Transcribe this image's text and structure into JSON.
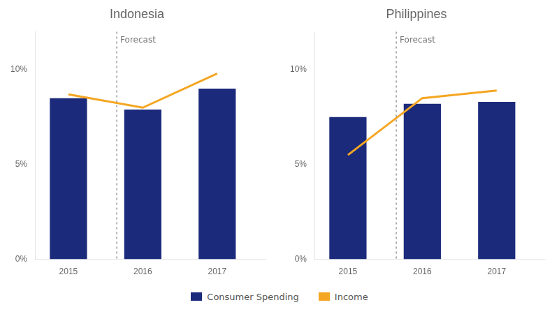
{
  "chart_data": [
    {
      "type": "bar",
      "title": "Indonesia",
      "x": [
        2015,
        2016,
        2017
      ],
      "series": [
        {
          "name": "Consumer Spending",
          "type": "bar",
          "color": "#1b2a7b",
          "values": [
            8.5,
            7.9,
            9.0
          ]
        },
        {
          "name": "Income",
          "type": "line",
          "color": "#f5a623",
          "values": [
            8.7,
            8.0,
            9.8
          ]
        }
      ],
      "annotations": [
        {
          "text": "Forecast",
          "x": 2015.65
        }
      ],
      "xlim": [
        2014.55,
        2017.65
      ],
      "xticks": [
        2015,
        2016,
        2017
      ],
      "ylim": [
        0,
        12
      ],
      "yticks": [
        {
          "value": 0,
          "label": "0%"
        },
        {
          "value": 5,
          "label": "5%"
        },
        {
          "value": 10,
          "label": "10%"
        }
      ],
      "grid": false,
      "legend": "bottom"
    },
    {
      "type": "bar",
      "title": "Philippines",
      "x": [
        2015,
        2016,
        2017
      ],
      "series": [
        {
          "name": "Consumer Spending",
          "type": "bar",
          "color": "#1b2a7b",
          "values": [
            7.5,
            8.2,
            8.3
          ]
        },
        {
          "name": "Income",
          "type": "line",
          "color": "#f5a623",
          "values": [
            5.5,
            8.5,
            8.9
          ]
        }
      ],
      "annotations": [
        {
          "text": "Forecast",
          "x": 2015.65
        }
      ],
      "xlim": [
        2014.55,
        2017.65
      ],
      "xticks": [
        2015,
        2016,
        2017
      ],
      "ylim": [
        0,
        12
      ],
      "yticks": [
        {
          "value": 0,
          "label": "0%"
        },
        {
          "value": 5,
          "label": "5%"
        },
        {
          "value": 10,
          "label": "10%"
        }
      ],
      "grid": false,
      "legend": "bottom"
    }
  ]
}
